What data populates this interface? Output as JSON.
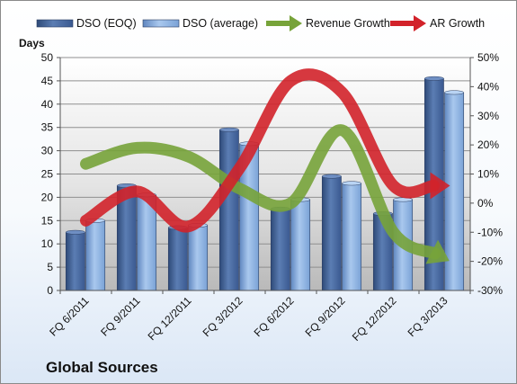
{
  "chart_data": {
    "type": "bar",
    "title": "Global Sources",
    "ylabel": "Days",
    "categories": [
      "FQ 6/2011",
      "FQ 9/2011",
      "FQ 12/2011",
      "FQ 3/2012",
      "FQ 6/2012",
      "FQ 9/2012",
      "FQ 12/2012",
      "FQ 3/2013"
    ],
    "ylim": [
      0,
      50
    ],
    "y_ticks": [
      "0",
      "5",
      "10",
      "15",
      "20",
      "25",
      "30",
      "35",
      "40",
      "45",
      "50"
    ],
    "y2lim": [
      -30,
      50
    ],
    "y2_ticks": [
      "-30%",
      "-20%",
      "-10%",
      "0%",
      "10%",
      "20%",
      "30%",
      "40%",
      "50%"
    ],
    "grid": true,
    "legend_position": "top",
    "series": [
      {
        "name": "DSO (EOQ)",
        "kind": "bar",
        "axis": "left",
        "color": "#4f6fa3",
        "values": [
          12.5,
          22.5,
          13.5,
          34.5,
          17.5,
          24.5,
          16.5,
          45.5
        ]
      },
      {
        "name": "DSO (average)",
        "kind": "bar",
        "axis": "left",
        "color": "#8db4e2",
        "values": [
          15,
          20.5,
          14,
          31.5,
          19.5,
          23,
          19.5,
          42.5
        ]
      },
      {
        "name": "Revenue Growth",
        "kind": "line",
        "axis": "right",
        "color": "#77a33a",
        "values": [
          13.5,
          19,
          16,
          5,
          0,
          25,
          -10,
          -19
        ]
      },
      {
        "name": "AR Growth",
        "kind": "line",
        "axis": "right",
        "color": "#d2222a",
        "values": [
          -6,
          4,
          -8,
          12,
          42,
          38,
          6,
          6
        ]
      }
    ]
  }
}
